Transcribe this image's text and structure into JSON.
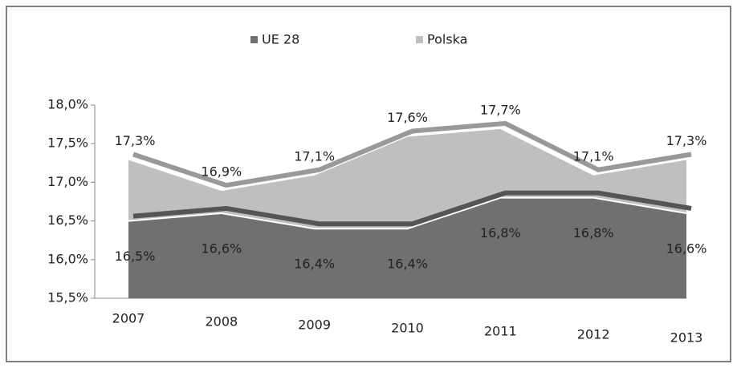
{
  "chart_data": {
    "type": "area",
    "categories": [
      "2007",
      "2008",
      "2009",
      "2010",
      "2011",
      "2012",
      "2013"
    ],
    "series": [
      {
        "name": "UE 28",
        "color": "#707070",
        "values": [
          16.5,
          16.6,
          16.4,
          16.4,
          16.8,
          16.8,
          16.6
        ],
        "value_labels": [
          "16,5%",
          "16,6%",
          "16,4%",
          "16,4%",
          "16,8%",
          "16,8%",
          "16,6%"
        ]
      },
      {
        "name": "Polska",
        "color": "#bfbfbf",
        "values": [
          17.3,
          16.9,
          17.1,
          17.6,
          17.7,
          17.1,
          17.3
        ],
        "value_labels": [
          "17,3%",
          "16,9%",
          "17,1%",
          "17,6%",
          "17,7%",
          "17,1%",
          "17,3%"
        ]
      }
    ],
    "ylim": [
      15.5,
      18.0
    ],
    "yticks": [
      {
        "value": 15.5,
        "label": "15,5%"
      },
      {
        "value": 16.0,
        "label": "16,0%"
      },
      {
        "value": 16.5,
        "label": "16,5%"
      },
      {
        "value": 17.0,
        "label": "17,0%"
      },
      {
        "value": 17.5,
        "label": "17,5%"
      },
      {
        "value": 18.0,
        "label": "18,0%"
      }
    ],
    "legend": "top"
  }
}
